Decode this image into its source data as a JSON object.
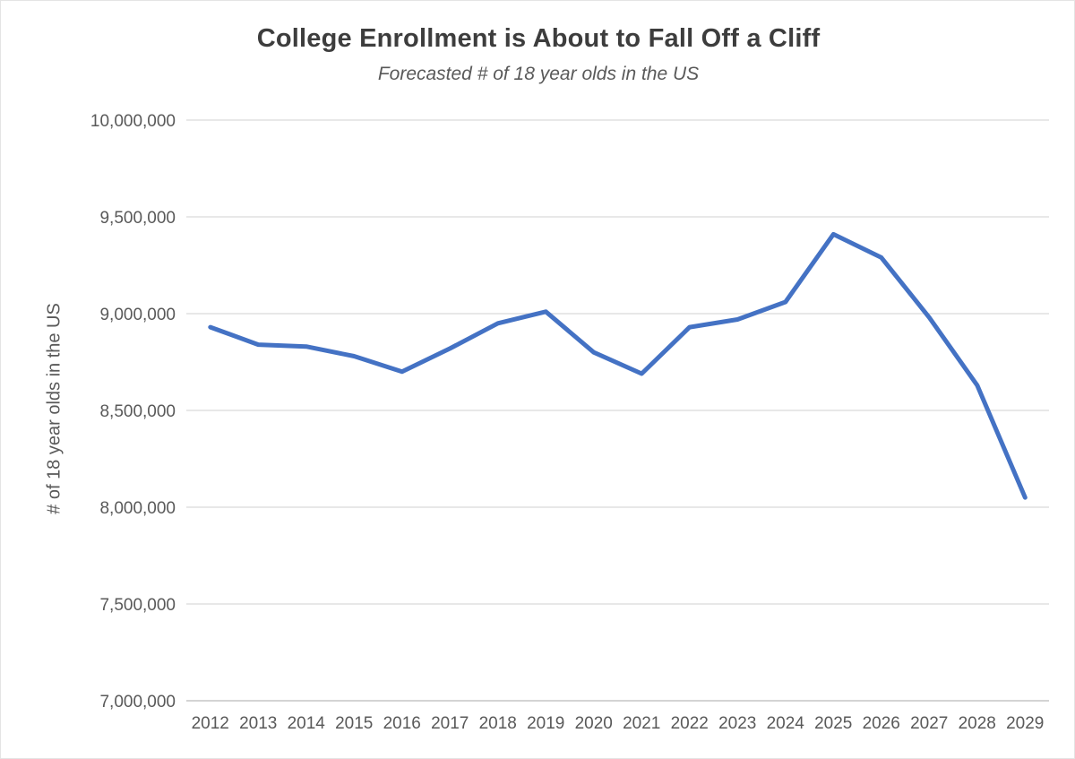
{
  "page": {
    "background_color": "#ffffff",
    "border_color": "#e4e4e4"
  },
  "chart_data": {
    "type": "line",
    "title": "College Enrollment is About to Fall Off a Cliff",
    "subtitle": "Forecasted # of 18 year olds in the US",
    "xlabel": "",
    "ylabel": "# of 18 year olds in the US",
    "categories": [
      "2012",
      "2013",
      "2014",
      "2015",
      "2016",
      "2017",
      "2018",
      "2019",
      "2020",
      "2021",
      "2022",
      "2023",
      "2024",
      "2025",
      "2026",
      "2027",
      "2028",
      "2029"
    ],
    "values": [
      8930000,
      8840000,
      8830000,
      8780000,
      8700000,
      8820000,
      8950000,
      9010000,
      8800000,
      8690000,
      8930000,
      8970000,
      9060000,
      9410000,
      9290000,
      8980000,
      8630000,
      8050000
    ],
    "ylim": [
      7000000,
      10000000
    ],
    "ytick_step": 500000,
    "ytick_labels": [
      "7,000,000",
      "7,500,000",
      "8,000,000",
      "8,500,000",
      "9,000,000",
      "9,500,000",
      "10,000,000"
    ],
    "grid": "horizontal",
    "legend": "none",
    "colors": {
      "line": "#4472C4",
      "gridline": "#d9d9d9",
      "axis_line": "#c6c6c6",
      "tick_label": "#595959",
      "title": "#3d3d3d",
      "subtitle": "#595959"
    }
  }
}
